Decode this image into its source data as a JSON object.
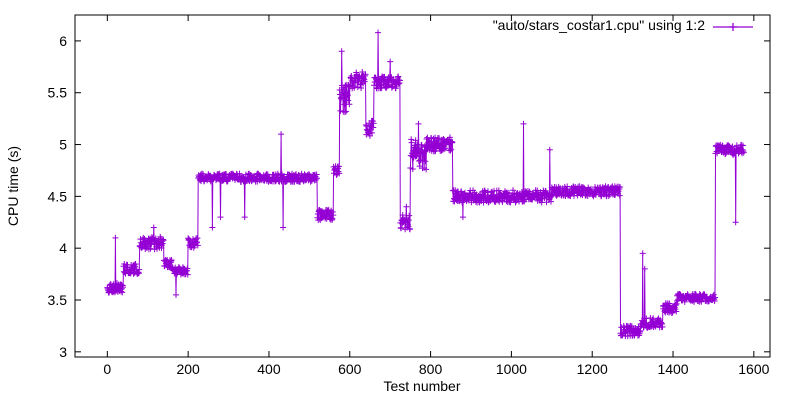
{
  "chart_data": {
    "type": "line",
    "title": "",
    "xlabel": "Test number",
    "ylabel": "CPU time (s)",
    "xlim": [
      -80,
      1640
    ],
    "ylim": [
      2.95,
      6.25
    ],
    "x_ticks": [
      0,
      200,
      400,
      600,
      800,
      1000,
      1200,
      1400,
      1600
    ],
    "y_ticks": [
      3,
      3.5,
      4,
      4.5,
      5,
      5.5,
      6
    ],
    "x_tick_labels": [
      "0",
      "200",
      "400",
      "600",
      "800",
      "1000",
      "1200",
      "1400",
      "1600"
    ],
    "y_tick_labels": [
      "3",
      "3.5",
      "4",
      "4.5",
      "5",
      "5.5",
      "6"
    ],
    "grid": false,
    "legend_position": "top-right",
    "series": [
      {
        "name": "\"auto/stars_costar1.cpu\" using 1:2",
        "color": "#9400d3",
        "marker": "plus",
        "x_start": 0,
        "x_end": 1575,
        "segments": [
          {
            "x": [
              0,
              40
            ],
            "base": 3.62,
            "noise": 0.05
          },
          {
            "x": [
              40,
              80
            ],
            "base": 3.8,
            "noise": 0.05
          },
          {
            "x": [
              80,
              140
            ],
            "base": 4.05,
            "noise": 0.06
          },
          {
            "x": [
              140,
              160
            ],
            "base": 3.85,
            "noise": 0.04
          },
          {
            "x": [
              160,
              200
            ],
            "base": 3.78,
            "noise": 0.04
          },
          {
            "x": [
              200,
              225
            ],
            "base": 4.05,
            "noise": 0.05
          },
          {
            "x": [
              225,
              520
            ],
            "base": 4.68,
            "noise": 0.04
          },
          {
            "x": [
              520,
              560
            ],
            "base": 4.32,
            "noise": 0.05
          },
          {
            "x": [
              560,
              575
            ],
            "base": 4.75,
            "noise": 0.05
          },
          {
            "x": [
              575,
              600
            ],
            "base": 5.45,
            "noise": 0.15
          },
          {
            "x": [
              600,
              640
            ],
            "base": 5.62,
            "noise": 0.08
          },
          {
            "x": [
              640,
              660
            ],
            "base": 5.15,
            "noise": 0.08
          },
          {
            "x": [
              660,
              725
            ],
            "base": 5.6,
            "noise": 0.06
          },
          {
            "x": [
              725,
              750
            ],
            "base": 4.25,
            "noise": 0.07
          },
          {
            "x": [
              750,
              790
            ],
            "base": 4.9,
            "noise": 0.15
          },
          {
            "x": [
              790,
              855
            ],
            "base": 5.0,
            "noise": 0.07
          },
          {
            "x": [
              855,
              1100
            ],
            "base": 4.5,
            "noise": 0.06
          },
          {
            "x": [
              1100,
              1270
            ],
            "base": 4.55,
            "noise": 0.05
          },
          {
            "x": [
              1270,
              1320
            ],
            "base": 3.2,
            "noise": 0.05
          },
          {
            "x": [
              1320,
              1375
            ],
            "base": 3.28,
            "noise": 0.05
          },
          {
            "x": [
              1375,
              1410
            ],
            "base": 3.42,
            "noise": 0.05
          },
          {
            "x": [
              1410,
              1505
            ],
            "base": 3.52,
            "noise": 0.04
          },
          {
            "x": [
              1505,
              1575
            ],
            "base": 4.95,
            "noise": 0.05
          }
        ],
        "spikes": [
          {
            "x": 20,
            "y": 4.1
          },
          {
            "x": 115,
            "y": 4.2
          },
          {
            "x": 170,
            "y": 3.55
          },
          {
            "x": 260,
            "y": 4.2
          },
          {
            "x": 280,
            "y": 4.3
          },
          {
            "x": 340,
            "y": 4.3
          },
          {
            "x": 430,
            "y": 5.1
          },
          {
            "x": 435,
            "y": 4.2
          },
          {
            "x": 580,
            "y": 5.9
          },
          {
            "x": 670,
            "y": 6.08
          },
          {
            "x": 700,
            "y": 5.8
          },
          {
            "x": 740,
            "y": 4.4
          },
          {
            "x": 770,
            "y": 5.2
          },
          {
            "x": 880,
            "y": 4.3
          },
          {
            "x": 1030,
            "y": 5.2
          },
          {
            "x": 1095,
            "y": 4.95
          },
          {
            "x": 1325,
            "y": 3.95
          },
          {
            "x": 1330,
            "y": 3.8
          },
          {
            "x": 1555,
            "y": 4.25
          }
        ]
      }
    ]
  }
}
